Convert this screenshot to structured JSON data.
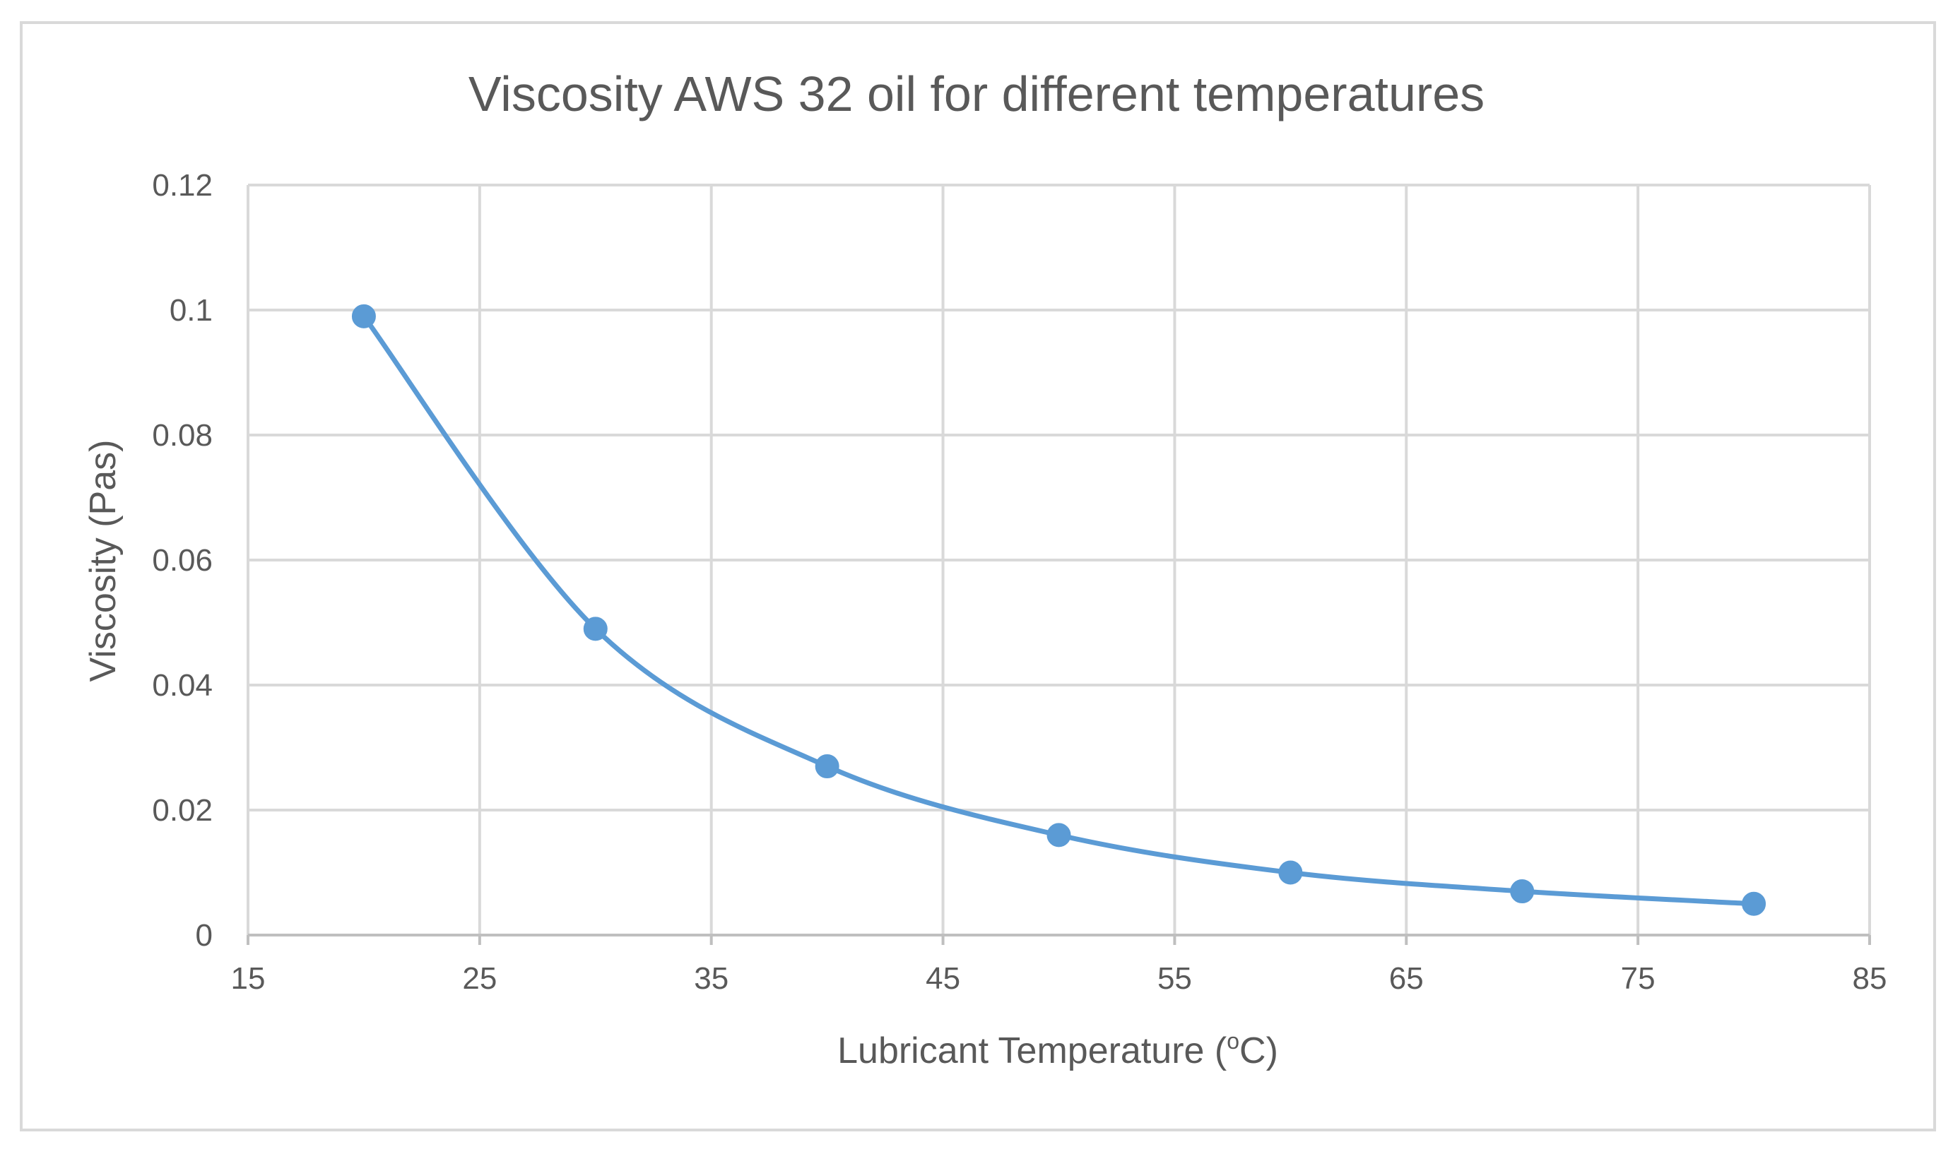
{
  "chart_data": {
    "type": "scatter",
    "title": "Viscosity AWS 32 oil for different temperatures",
    "xlabel_main": "Lubricant Temperature (",
    "xlabel_sup": "o",
    "xlabel_tail": "C)",
    "ylabel": "Viscosity (Pas)",
    "xlim": [
      15,
      85
    ],
    "ylim": [
      0,
      0.12
    ],
    "x_ticks": [
      "15",
      "25",
      "35",
      "45",
      "55",
      "65",
      "75",
      "85"
    ],
    "y_ticks": [
      "0",
      "0.02",
      "0.04",
      "0.06",
      "0.08",
      "0.1",
      "0.12"
    ],
    "grid": true,
    "smooth": true,
    "series": [
      {
        "name": "Viscosity",
        "color": "#5b9bd5",
        "x": [
          20,
          30,
          40,
          50,
          60,
          70,
          80
        ],
        "y": [
          0.099,
          0.049,
          0.027,
          0.016,
          0.01,
          0.007,
          0.005
        ]
      }
    ]
  }
}
